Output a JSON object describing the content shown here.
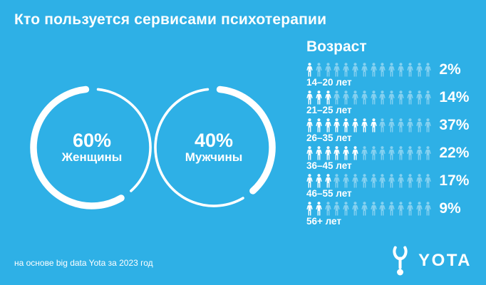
{
  "colors": {
    "background": "#2EB0E6",
    "text": "#FFFFFF",
    "muted_icon": "rgba(255,255,255,0.42)"
  },
  "title": "Кто пользуется сервисами психотерапии",
  "gender_chart": {
    "type": "donut",
    "segments": [
      {
        "value_text": "60%",
        "percent": 60,
        "label": "Женщины"
      },
      {
        "value_text": "40%",
        "percent": 40,
        "label": "Мужчины"
      }
    ]
  },
  "age_section": {
    "heading": "Возраст",
    "icons_per_row": 14,
    "rows": [
      {
        "label": "14–20 лет",
        "percent": 2,
        "percent_text": "2%",
        "highlighted": 1
      },
      {
        "label": "21–25 лет",
        "percent": 14,
        "percent_text": "14%",
        "highlighted": 3
      },
      {
        "label": "26–35 лет",
        "percent": 37,
        "percent_text": "37%",
        "highlighted": 8
      },
      {
        "label": "36–45 лет",
        "percent": 22,
        "percent_text": "22%",
        "highlighted": 6
      },
      {
        "label": "46–55 лет",
        "percent": 17,
        "percent_text": "17%",
        "highlighted": 3
      },
      {
        "label": "56+ лет",
        "percent": 9,
        "percent_text": "9%",
        "highlighted": 2
      }
    ]
  },
  "footer": {
    "source_note": "на основе big data Yota за 2023 год",
    "brand": "YOTA"
  },
  "chart_data": [
    {
      "type": "pie",
      "title": "Кто пользуется сервисами психотерапии",
      "labels": [
        "Женщины",
        "Мужчины"
      ],
      "values": [
        60,
        40
      ],
      "units": "%",
      "legend_position": "inside-donut"
    },
    {
      "type": "bar",
      "title": "Возраст",
      "categories": [
        "14–20 лет",
        "21–25 лет",
        "26–35 лет",
        "36–45 лет",
        "46–55 лет",
        "56+ лет"
      ],
      "values": [
        2,
        14,
        37,
        22,
        17,
        9
      ],
      "units": "%",
      "style": "pictogram, 14 person icons per row, highlighted counts [1,3,8,6,3,2]"
    }
  ]
}
